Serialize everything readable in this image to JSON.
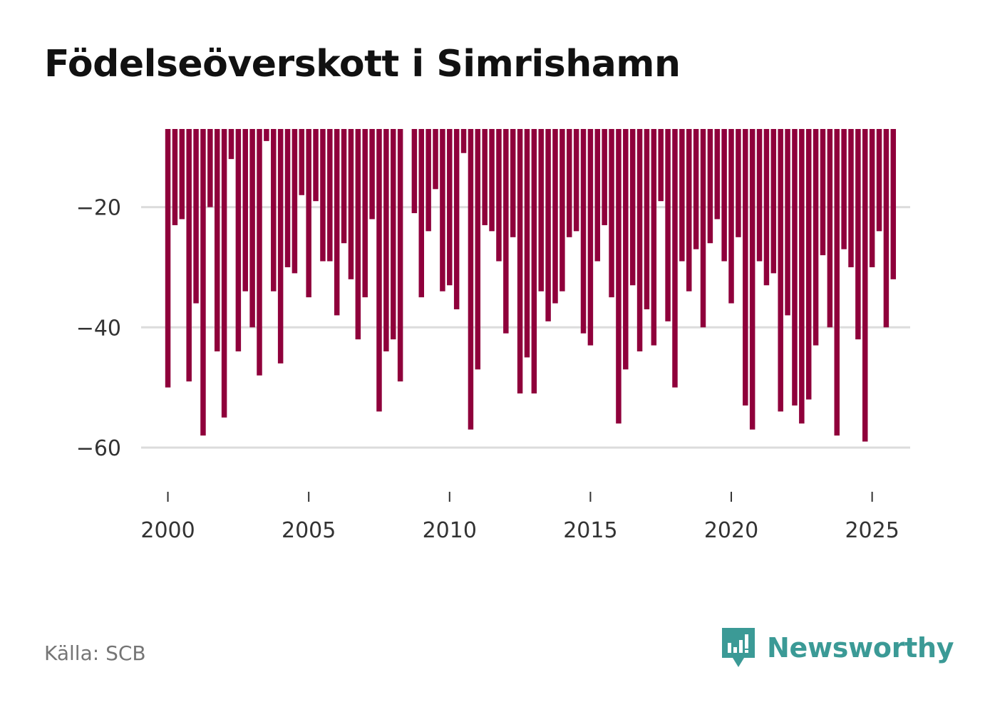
{
  "title": "Födelseöverskott i Simrishamn",
  "source": "Källa: SCB",
  "brand": {
    "name": "Newsworthy",
    "logo_icon": "newsworthy-chart-bubble-icon",
    "color": "#3b9a96"
  },
  "chart_data": {
    "type": "bar",
    "title": "Födelseöverskott i Simrishamn",
    "xlabel": "",
    "ylabel": "",
    "bar_color": "#8f003b",
    "grid": true,
    "x_ticks": [
      2000,
      2005,
      2010,
      2015,
      2020,
      2025
    ],
    "y_ticks": [
      -20,
      -40,
      -60
    ],
    "x_tick_labels": [
      "2000",
      "2005",
      "2010",
      "2015",
      "2020",
      "2025"
    ],
    "y_tick_labels": [
      "−20",
      "−40",
      "−60"
    ],
    "xlim": [
      1999.05,
      2026.35
    ],
    "ylim": [
      -67,
      -7
    ],
    "baseline": -7,
    "start_year": 2000,
    "periods_per_year": 4,
    "period_label": "quarter",
    "series": [
      {
        "name": "Födelseöverskott",
        "values": [
          -50,
          -23,
          -22,
          -49,
          -36,
          -58,
          -20,
          -44,
          -55,
          -12,
          -44,
          -34,
          -40,
          -48,
          -9,
          -34,
          -46,
          -30,
          -31,
          -18,
          -35,
          -19,
          -29,
          -29,
          -38,
          -26,
          -32,
          -42,
          -35,
          -22,
          -54,
          -44,
          -42,
          -49,
          null,
          -21,
          -35,
          -24,
          -17,
          -34,
          -33,
          -37,
          -11,
          -57,
          -47,
          -23,
          -24,
          -29,
          -41,
          -25,
          -51,
          -45,
          -51,
          -34,
          -39,
          -36,
          -34,
          -25,
          -24,
          -41,
          -43,
          -29,
          -23,
          -35,
          -56,
          -47,
          -33,
          -44,
          -37,
          -43,
          -19,
          -39,
          -50,
          -29,
          -34,
          -27,
          -40,
          -26,
          -22,
          -29,
          -36,
          -25,
          -53,
          -57,
          -29,
          -33,
          -31,
          -54,
          -38,
          -53,
          -56,
          -52,
          -43,
          -28,
          -40,
          -58,
          -27,
          -30,
          -42,
          -59,
          -30,
          -24,
          -40,
          -32
        ]
      }
    ]
  }
}
